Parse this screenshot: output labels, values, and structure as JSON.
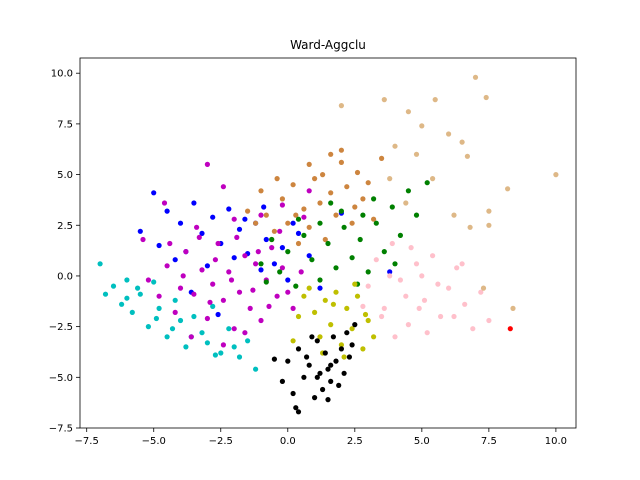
{
  "chart_data": {
    "type": "scatter",
    "title": "Ward-Aggclu",
    "xlabel": "",
    "ylabel": "",
    "xlim": [
      -7.75,
      10.75
    ],
    "ylim": [
      -7.5,
      10.75
    ],
    "x_ticks": [
      -7.5,
      -5.0,
      -2.5,
      0.0,
      2.5,
      5.0,
      7.5,
      10.0
    ],
    "x_tick_labels": [
      "−7.5",
      "−5.0",
      "−2.5",
      "0.0",
      "2.5",
      "5.0",
      "7.5",
      "10.0"
    ],
    "y_ticks": [
      -7.5,
      -5.0,
      -2.5,
      0.0,
      2.5,
      5.0,
      7.5,
      10.0
    ],
    "y_tick_labels": [
      "−7.5",
      "−5.0",
      "−2.5",
      "0.0",
      "2.5",
      "5.0",
      "7.5",
      "10.0"
    ],
    "grid": false,
    "legend": "none",
    "series": [
      {
        "color": "#00bfbf",
        "points": [
          [
            -7,
            0.6
          ],
          [
            -6.8,
            -0.9
          ],
          [
            -6.5,
            -0.5
          ],
          [
            -6.2,
            -1.4
          ],
          [
            -6.0,
            -0.2
          ],
          [
            -5.8,
            -1.8
          ],
          [
            -5.5,
            -0.9
          ],
          [
            -5.2,
            -2.5
          ],
          [
            -5.0,
            -0.3
          ],
          [
            -4.8,
            -1.6
          ],
          [
            -4.5,
            -3.0
          ],
          [
            -4.2,
            -1.2
          ],
          [
            -4.0,
            -2.2
          ],
          [
            -3.8,
            -3.5
          ],
          [
            -3.5,
            -2.0
          ],
          [
            -3.2,
            -2.8
          ],
          [
            -3.0,
            -3.3
          ],
          [
            -2.8,
            -1.5
          ],
          [
            -2.5,
            -3.8
          ],
          [
            -2.2,
            -2.6
          ],
          [
            -2.0,
            -3.5
          ],
          [
            -1.8,
            -4.0
          ],
          [
            -1.5,
            -3.2
          ],
          [
            -1.2,
            -4.6
          ],
          [
            -6.0,
            -1.1
          ],
          [
            -5.6,
            -0.6
          ],
          [
            -4.9,
            -2.1
          ],
          [
            -4.3,
            -2.6
          ],
          [
            -3.6,
            -3.0
          ],
          [
            -2.7,
            -3.9
          ]
        ]
      },
      {
        "color": "#0000ff",
        "points": [
          [
            -5.5,
            2.2
          ],
          [
            -5.0,
            4.1
          ],
          [
            -4.8,
            1.5
          ],
          [
            -4.5,
            3.2
          ],
          [
            -4.2,
            0.8
          ],
          [
            -4.0,
            2.6
          ],
          [
            -3.8,
            1.2
          ],
          [
            -3.5,
            3.6
          ],
          [
            -3.2,
            2.1
          ],
          [
            -3.0,
            0.5
          ],
          [
            -2.8,
            2.9
          ],
          [
            -2.5,
            1.6
          ],
          [
            -2.2,
            3.3
          ],
          [
            -2.0,
            0.9
          ],
          [
            -1.8,
            2.3
          ],
          [
            -1.5,
            1.1
          ],
          [
            -1.2,
            2.6
          ],
          [
            -1.0,
            0.3
          ],
          [
            -0.8,
            1.8
          ],
          [
            -0.5,
            0.6
          ],
          [
            -0.2,
            1.4
          ],
          [
            0.0,
            -0.2
          ],
          [
            0.4,
            2.1
          ],
          [
            0.8,
            1.0
          ],
          [
            1.2,
            -0.6
          ],
          [
            2.0,
            3.1
          ],
          [
            3.8,
            0.2
          ],
          [
            -3.6,
            -0.8
          ],
          [
            -2.6,
            -1.9
          ],
          [
            -1.6,
            2.8
          ],
          [
            -0.9,
            3.4
          ],
          [
            0.2,
            2.6
          ]
        ]
      },
      {
        "color": "#bf00bf",
        "points": [
          [
            -5.2,
            -0.2
          ],
          [
            -4.8,
            -1.0
          ],
          [
            -4.5,
            0.5
          ],
          [
            -4.2,
            -1.8
          ],
          [
            -4.0,
            -0.6
          ],
          [
            -3.8,
            1.2
          ],
          [
            -3.5,
            -0.9
          ],
          [
            -3.2,
            0.3
          ],
          [
            -3.0,
            -2.1
          ],
          [
            -2.8,
            -0.4
          ],
          [
            -2.6,
            1.6
          ],
          [
            -2.4,
            -1.2
          ],
          [
            -2.2,
            0.2
          ],
          [
            -2.0,
            -2.6
          ],
          [
            -1.8,
            -0.8
          ],
          [
            -1.6,
            1.0
          ],
          [
            -1.4,
            -1.6
          ],
          [
            -1.2,
            0.6
          ],
          [
            -1.0,
            -2.2
          ],
          [
            -0.8,
            -0.2
          ],
          [
            -0.6,
            1.4
          ],
          [
            -0.4,
            -1.0
          ],
          [
            -0.2,
            0.4
          ],
          [
            0.2,
            -1.6
          ],
          [
            0.5,
            0.2
          ],
          [
            -3.0,
            5.5
          ],
          [
            -2.4,
            4.4
          ],
          [
            -4.6,
            3.6
          ],
          [
            -3.4,
            2.4
          ],
          [
            -2.0,
            2.8
          ],
          [
            -1.0,
            3.0
          ],
          [
            -0.2,
            3.5
          ],
          [
            0.8,
            4.2
          ],
          [
            -5.4,
            1.8
          ],
          [
            -3.6,
            -3.0
          ],
          [
            -2.4,
            -3.4
          ],
          [
            -1.6,
            -2.8
          ],
          [
            -4.4,
            1.6
          ],
          [
            -3.9,
            0.0
          ],
          [
            -2.9,
            -1.3
          ],
          [
            -2.1,
            -0.2
          ],
          [
            -1.3,
            -0.7
          ],
          [
            -0.7,
            -1.5
          ],
          [
            0.0,
            -0.8
          ],
          [
            -3.3,
            1.9
          ],
          [
            -2.7,
            0.8
          ],
          [
            -1.9,
            1.9
          ],
          [
            -1.1,
            1.2
          ],
          [
            -0.3,
            2.2
          ],
          [
            0.6,
            2.9
          ]
        ]
      },
      {
        "color": "#cd853f",
        "points": [
          [
            -1.5,
            3.2
          ],
          [
            -1.2,
            2.6
          ],
          [
            -1.0,
            4.2
          ],
          [
            -0.8,
            3.0
          ],
          [
            -0.5,
            2.2
          ],
          [
            -0.2,
            3.8
          ],
          [
            0.0,
            2.6
          ],
          [
            0.2,
            4.5
          ],
          [
            0.4,
            1.6
          ],
          [
            0.6,
            3.3
          ],
          [
            0.8,
            2.4
          ],
          [
            1.0,
            4.8
          ],
          [
            1.2,
            3.6
          ],
          [
            1.4,
            1.8
          ],
          [
            1.6,
            4.1
          ],
          [
            1.8,
            3.0
          ],
          [
            2.0,
            5.6
          ],
          [
            2.2,
            4.4
          ],
          [
            2.4,
            2.6
          ],
          [
            2.6,
            5.1
          ],
          [
            2.8,
            3.8
          ],
          [
            3.0,
            4.6
          ],
          [
            3.2,
            2.8
          ],
          [
            3.5,
            5.8
          ],
          [
            1.6,
            6.0
          ],
          [
            2.0,
            6.2
          ],
          [
            0.8,
            5.5
          ],
          [
            -0.4,
            4.8
          ],
          [
            1.3,
            5.0
          ],
          [
            2.5,
            3.4
          ],
          [
            -0.6,
            1.8
          ],
          [
            0.3,
            3.0
          ]
        ]
      },
      {
        "color": "#008000",
        "points": [
          [
            -1.0,
            0.6
          ],
          [
            -0.6,
            1.8
          ],
          [
            -0.3,
            0.2
          ],
          [
            0.0,
            1.2
          ],
          [
            0.3,
            -0.5
          ],
          [
            0.6,
            2.0
          ],
          [
            0.9,
            0.8
          ],
          [
            1.2,
            -0.2
          ],
          [
            1.5,
            1.6
          ],
          [
            1.8,
            0.4
          ],
          [
            2.1,
            2.4
          ],
          [
            2.4,
            0.9
          ],
          [
            2.7,
            1.8
          ],
          [
            3.0,
            0.2
          ],
          [
            3.3,
            2.6
          ],
          [
            3.6,
            1.2
          ],
          [
            3.9,
            3.4
          ],
          [
            4.2,
            2.0
          ],
          [
            4.5,
            4.2
          ],
          [
            4.8,
            3.0
          ],
          [
            5.2,
            4.6
          ],
          [
            2.0,
            3.2
          ],
          [
            1.2,
            2.6
          ],
          [
            0.4,
            2.8
          ],
          [
            -0.8,
            -0.3
          ],
          [
            2.6,
            -0.4
          ],
          [
            3.2,
            3.8
          ],
          [
            4.0,
            0.6
          ],
          [
            1.6,
            3.6
          ],
          [
            2.8,
            3.0
          ]
        ]
      },
      {
        "color": "#ffc0cb",
        "points": [
          [
            3.0,
            -0.5
          ],
          [
            3.3,
            0.8
          ],
          [
            3.6,
            -1.6
          ],
          [
            3.9,
            1.6
          ],
          [
            4.2,
            -0.2
          ],
          [
            4.5,
            -2.4
          ],
          [
            4.8,
            0.6
          ],
          [
            5.1,
            -1.2
          ],
          [
            5.4,
            1.0
          ],
          [
            5.7,
            -2.0
          ],
          [
            6.0,
            -0.6
          ],
          [
            6.3,
            0.4
          ],
          [
            6.6,
            -1.4
          ],
          [
            6.9,
            -2.6
          ],
          [
            7.2,
            -0.8
          ],
          [
            7.5,
            -2.2
          ],
          [
            4.0,
            -3.0
          ],
          [
            4.6,
            1.4
          ],
          [
            5.2,
            -2.8
          ],
          [
            3.5,
            -2.0
          ],
          [
            4.4,
            -1.0
          ],
          [
            5.0,
            0.0
          ],
          [
            5.6,
            -0.4
          ],
          [
            6.2,
            -2.0
          ],
          [
            3.8,
            0.0
          ],
          [
            4.9,
            -1.6
          ],
          [
            6.5,
            0.6
          ],
          [
            2.8,
            -1.5
          ]
        ]
      },
      {
        "color": "#bfbf00",
        "points": [
          [
            0.8,
            -0.6
          ],
          [
            1.0,
            -1.8
          ],
          [
            1.2,
            -3.0
          ],
          [
            1.4,
            -1.2
          ],
          [
            1.6,
            -2.4
          ],
          [
            1.8,
            -0.8
          ],
          [
            2.0,
            -3.4
          ],
          [
            2.2,
            -1.6
          ],
          [
            2.4,
            -2.6
          ],
          [
            2.6,
            -1.0
          ],
          [
            2.8,
            -3.6
          ],
          [
            3.0,
            -2.2
          ],
          [
            0.4,
            -2.0
          ],
          [
            0.2,
            -3.2
          ],
          [
            1.3,
            -3.8
          ],
          [
            2.1,
            -4.0
          ],
          [
            2.9,
            -1.9
          ],
          [
            3.2,
            -3.0
          ],
          [
            0.6,
            -1.0
          ],
          [
            1.7,
            -1.4
          ],
          [
            2.5,
            -0.4
          ]
        ]
      },
      {
        "color": "#000000",
        "points": [
          [
            0.0,
            -4.2
          ],
          [
            0.2,
            -5.8
          ],
          [
            0.4,
            -3.6
          ],
          [
            0.6,
            -5.0
          ],
          [
            0.8,
            -4.4
          ],
          [
            1.0,
            -6.0
          ],
          [
            1.1,
            -3.2
          ],
          [
            1.2,
            -4.8
          ],
          [
            1.3,
            -5.6
          ],
          [
            1.4,
            -3.8
          ],
          [
            1.5,
            -4.6
          ],
          [
            1.6,
            -5.2
          ],
          [
            1.7,
            -3.0
          ],
          [
            1.8,
            -4.2
          ],
          [
            1.9,
            -5.4
          ],
          [
            2.0,
            -3.6
          ],
          [
            2.1,
            -4.8
          ],
          [
            2.2,
            -2.8
          ],
          [
            2.3,
            -4.0
          ],
          [
            2.4,
            -3.4
          ],
          [
            0.3,
            -6.5
          ],
          [
            0.4,
            -6.7
          ],
          [
            0.7,
            -4.0
          ],
          [
            1.5,
            -6.1
          ],
          [
            -0.2,
            -5.2
          ],
          [
            -0.5,
            -4.1
          ],
          [
            0.9,
            -3.0
          ],
          [
            2.5,
            -2.4
          ],
          [
            1.1,
            -5.0
          ],
          [
            1.6,
            -4.4
          ]
        ]
      },
      {
        "color": "#deb887",
        "points": [
          [
            5.0,
            7.4
          ],
          [
            5.5,
            8.7
          ],
          [
            4.5,
            8.1
          ],
          [
            3.6,
            8.7
          ],
          [
            4.0,
            6.4
          ],
          [
            4.8,
            6.0
          ],
          [
            5.4,
            4.8
          ],
          [
            6.0,
            7.0
          ],
          [
            6.5,
            6.6
          ],
          [
            7.0,
            9.8
          ],
          [
            7.4,
            8.8
          ],
          [
            8.2,
            4.3
          ],
          [
            10.0,
            5.0
          ],
          [
            3.8,
            4.8
          ],
          [
            4.4,
            3.6
          ],
          [
            7.5,
            3.2
          ],
          [
            7.5,
            2.5
          ],
          [
            6.8,
            2.4
          ],
          [
            6.2,
            3.0
          ],
          [
            7.3,
            -0.6
          ],
          [
            8.4,
            -1.6
          ],
          [
            2.0,
            8.4
          ],
          [
            6.7,
            5.9
          ]
        ]
      },
      {
        "color": "#ff0000",
        "points": [
          [
            8.3,
            -2.6
          ]
        ]
      }
    ]
  }
}
